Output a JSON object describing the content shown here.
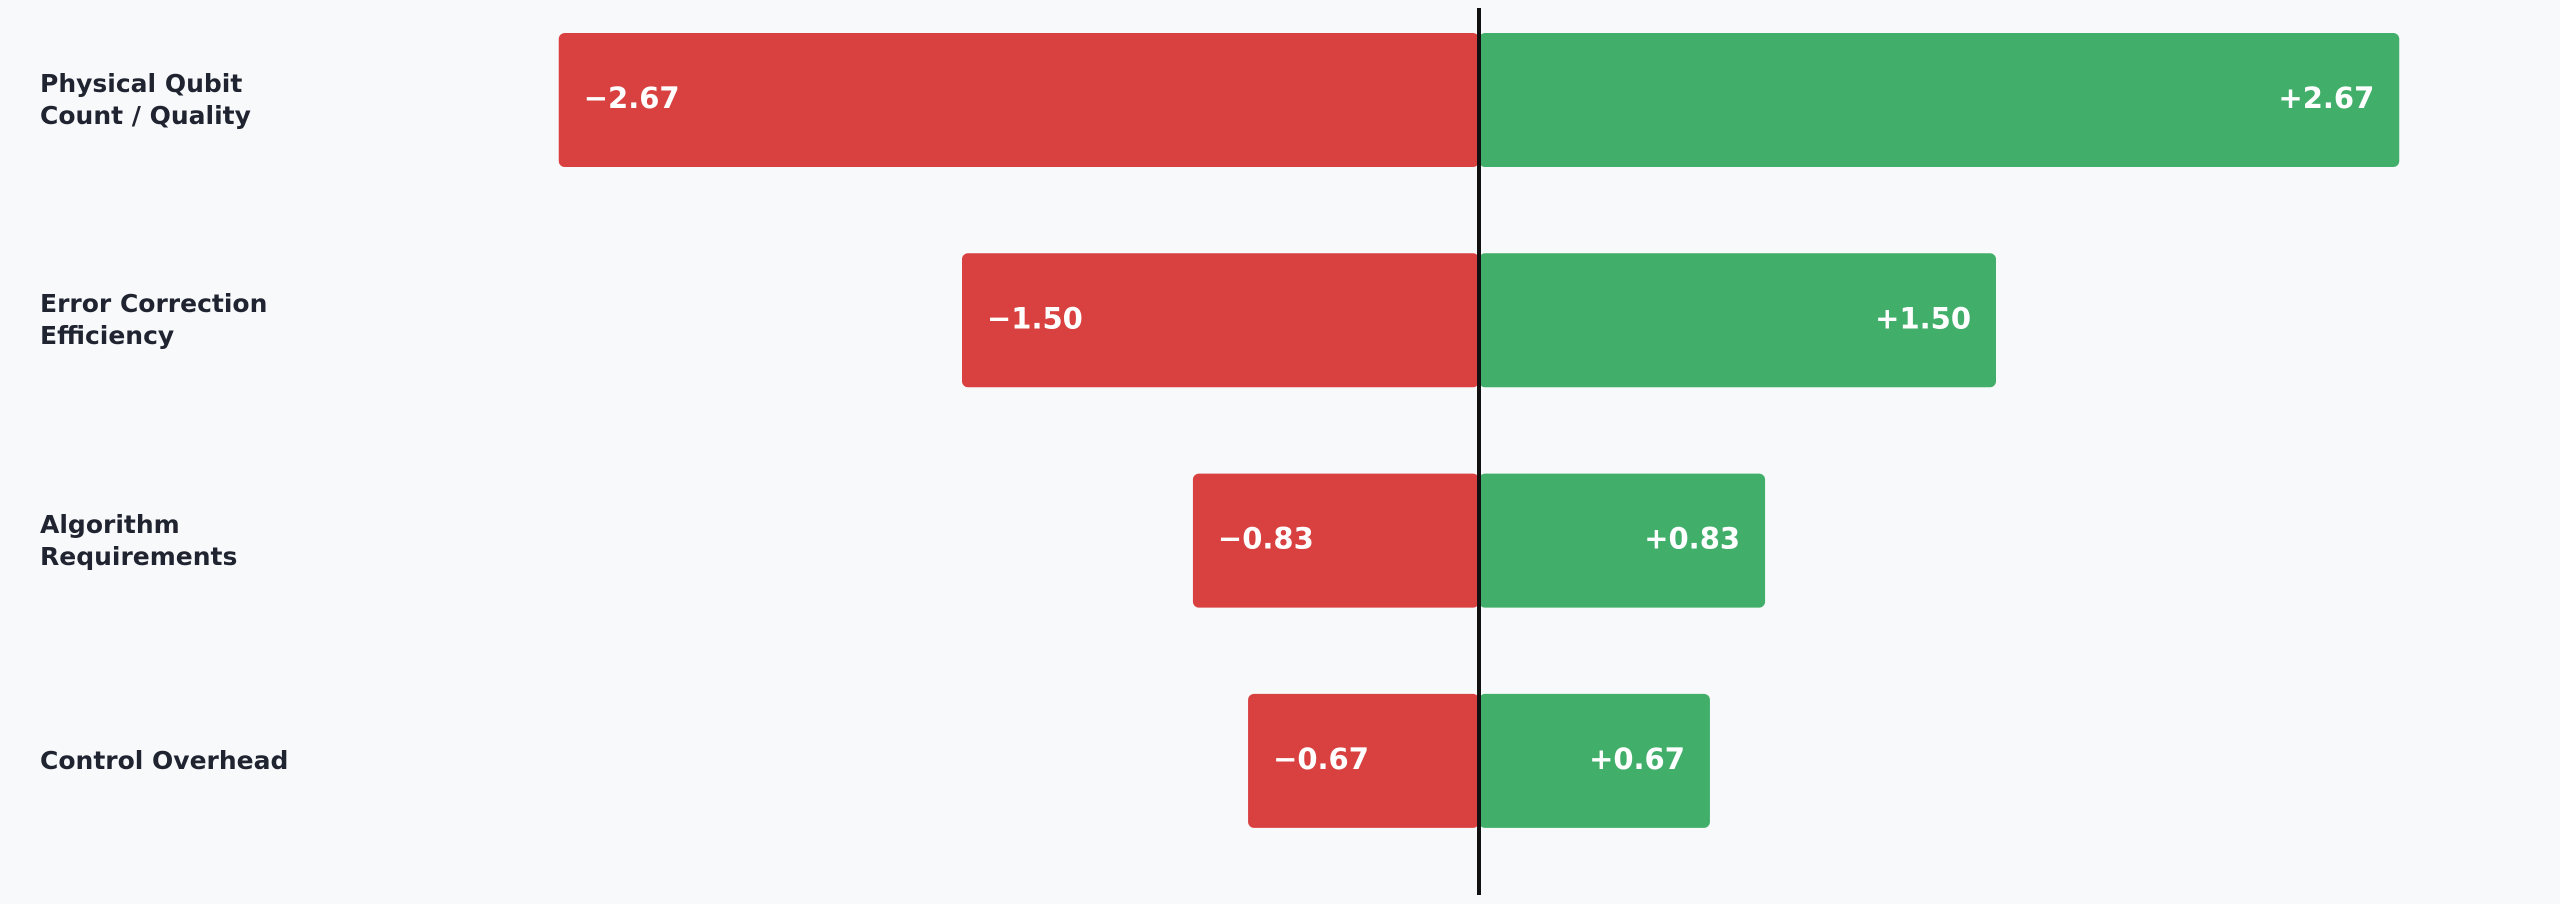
{
  "chart_data": {
    "type": "tornado",
    "categories": [
      "Physical Qubit Count / Quality",
      "Error Correction Efficiency",
      "Algorithm Requirements",
      "Control Overhead"
    ],
    "series": [
      {
        "color": "#d94040",
        "values": [
          -2.67,
          -1.5,
          -0.83,
          -0.67
        ],
        "value_labels": [
          "−2.67",
          "−1.50",
          "−0.83",
          "−0.67"
        ]
      },
      {
        "color": "#41ae6a",
        "values": [
          2.67,
          1.5,
          0.83,
          0.67
        ],
        "value_labels": [
          "+2.67",
          "+1.50",
          "+0.83",
          "+0.67"
        ]
      }
    ],
    "xlim": [
      -3,
      3
    ]
  }
}
